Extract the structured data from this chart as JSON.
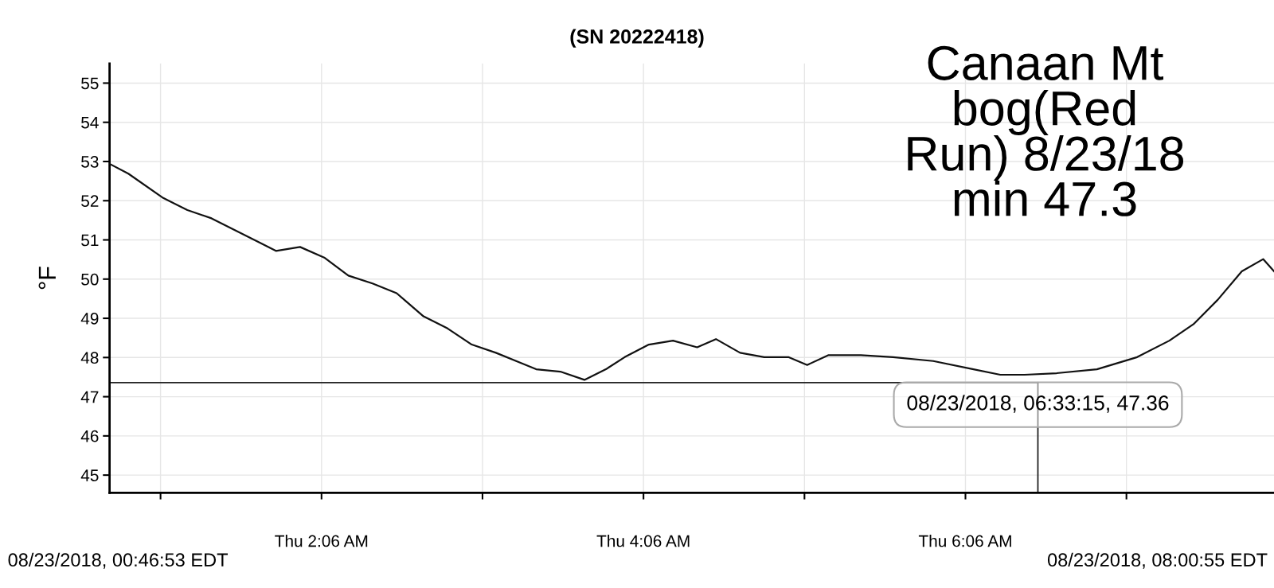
{
  "chart_data": {
    "type": "line",
    "title": "(SN 20222418)",
    "ylabel": "°F",
    "x": [
      "2018-08-23T00:47",
      "2018-08-23T00:54",
      "2018-08-23T01:07",
      "2018-08-23T01:16",
      "2018-08-23T01:25",
      "2018-08-23T01:34",
      "2018-08-23T01:43",
      "2018-08-23T01:49",
      "2018-08-23T01:58",
      "2018-08-23T02:07",
      "2018-08-23T02:16",
      "2018-08-23T02:25",
      "2018-08-23T02:34",
      "2018-08-23T02:44",
      "2018-08-23T02:53",
      "2018-08-23T03:02",
      "2018-08-23T03:11",
      "2018-08-23T03:20",
      "2018-08-23T03:26",
      "2018-08-23T03:35",
      "2018-08-23T03:44",
      "2018-08-23T03:52",
      "2018-08-23T03:59",
      "2018-08-23T04:08",
      "2018-08-23T04:17",
      "2018-08-23T04:26",
      "2018-08-23T04:33",
      "2018-08-23T04:42",
      "2018-08-23T04:51",
      "2018-08-23T05:00",
      "2018-08-23T05:07",
      "2018-08-23T05:15",
      "2018-08-23T05:27",
      "2018-08-23T05:39",
      "2018-08-23T05:54",
      "2018-08-23T06:09",
      "2018-08-23T06:19",
      "2018-08-23T06:28",
      "2018-08-23T06:40",
      "2018-08-23T06:55",
      "2018-08-23T07:10",
      "2018-08-23T07:22",
      "2018-08-23T07:31",
      "2018-08-23T07:40",
      "2018-08-23T07:49",
      "2018-08-23T07:57",
      "2018-08-23T08:01"
    ],
    "series": [
      {
        "color": "#111111",
        "values": [
          52.94,
          52.69,
          52.07,
          51.76,
          51.55,
          51.24,
          50.93,
          50.72,
          50.82,
          50.55,
          50.09,
          49.89,
          49.64,
          49.05,
          48.74,
          48.33,
          48.12,
          47.87,
          47.7,
          47.64,
          47.43,
          47.7,
          48.01,
          48.33,
          48.43,
          48.26,
          48.47,
          48.12,
          48.01,
          48.01,
          47.81,
          48.06,
          48.06,
          48.01,
          47.91,
          47.7,
          47.56,
          47.56,
          47.6,
          47.7,
          48.01,
          48.43,
          48.85,
          49.47,
          50.2,
          50.51,
          50.2
        ]
      }
    ],
    "xlim": [
      "2018-08-23T00:47",
      "2018-08-23T08:01"
    ],
    "xticks": [
      {
        "value": "2018-08-23T01:06",
        "label": null
      },
      {
        "value": "2018-08-23T02:06",
        "label": "Thu 2:06 AM"
      },
      {
        "value": "2018-08-23T03:06",
        "label": null
      },
      {
        "value": "2018-08-23T04:06",
        "label": "Thu 4:06 AM"
      },
      {
        "value": "2018-08-23T05:06",
        "label": null
      },
      {
        "value": "2018-08-23T06:06",
        "label": "Thu 6:06 AM"
      },
      {
        "value": "2018-08-23T07:06",
        "label": null
      }
    ],
    "ylim": [
      44.55,
      55.5
    ],
    "yticks": [
      45,
      46,
      47,
      48,
      49,
      50,
      51,
      52,
      53,
      54,
      55
    ],
    "grid": true,
    "legend": false,
    "marker": "none",
    "line_style": "solid",
    "ref_lines": [
      {
        "axis": "y",
        "value": 47.36,
        "color": "#222222"
      },
      {
        "axis": "x",
        "value": "2018-08-23T06:33",
        "color": "#222222"
      }
    ],
    "annotations": [
      {
        "text": "08/23/2018, 06:33:15, 47.36",
        "x": "2018-08-23T06:33",
        "y": 47.36
      },
      "Canaan Mt\nbog(Red\nRun) 8/23/18\nmin 47.3",
      "08/23/2018, 00:46:53 EDT",
      "08/23/2018, 08:00:55 EDT"
    ]
  }
}
